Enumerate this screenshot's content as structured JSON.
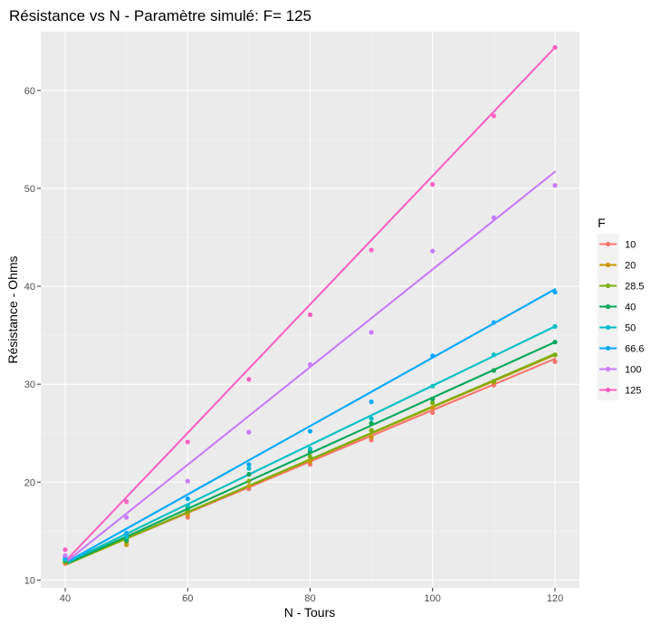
{
  "chart_data": {
    "type": "scatter",
    "title": "Résistance vs N - Paramètre simulé: F= 125",
    "xlabel": "N - Tours",
    "ylabel": "Résistance - Ohms",
    "xlim": [
      36,
      124
    ],
    "ylim": [
      9.2,
      66.0
    ],
    "x_ticks": [
      40,
      60,
      80,
      100,
      120
    ],
    "y_ticks": [
      10,
      20,
      30,
      40,
      50,
      60
    ],
    "x_tick_labels": [
      "40",
      "60",
      "80",
      "100",
      "120"
    ],
    "y_tick_labels": [
      "10",
      "20",
      "30",
      "40",
      "50",
      "60"
    ],
    "grid": true,
    "legend": {
      "title": "F",
      "position": "right"
    },
    "x": [
      40,
      50,
      60,
      70,
      80,
      90,
      100,
      110,
      120
    ],
    "series": [
      {
        "name": "10",
        "color": "#F8766D",
        "points": [
          11.7,
          13.9,
          16.4,
          19.3,
          21.8,
          24.3,
          27.1,
          29.9,
          32.3
        ],
        "fit": [
          11.6,
          32.6
        ]
      },
      {
        "name": "20",
        "color": "#CD9600",
        "points": [
          11.8,
          13.6,
          16.7,
          19.6,
          22.1,
          24.6,
          27.6,
          30.2,
          33.0
        ],
        "fit": [
          11.55,
          33.0
        ]
      },
      {
        "name": "28.5",
        "color": "#7CAE00",
        "points": [
          11.9,
          13.9,
          17.0,
          20.1,
          22.6,
          25.3,
          28.1,
          30.3,
          33.0
        ],
        "fit": [
          11.55,
          33.1
        ]
      },
      {
        "name": "40",
        "color": "#00A85A",
        "points": [
          12.0,
          14.1,
          17.3,
          20.8,
          23.1,
          26.0,
          28.5,
          31.4,
          34.3
        ],
        "fit": [
          11.6,
          34.3
        ]
      },
      {
        "name": "50",
        "color": "#00BFC4",
        "points": [
          12.1,
          14.4,
          17.6,
          21.4,
          23.4,
          26.5,
          29.8,
          33.0,
          35.9
        ],
        "fit": [
          11.7,
          35.9
        ]
      },
      {
        "name": "66.6",
        "color": "#00A9FF",
        "points": [
          12.3,
          14.8,
          18.3,
          21.8,
          25.2,
          28.2,
          32.9,
          36.3,
          39.4
        ],
        "fit": [
          11.75,
          39.7
        ]
      },
      {
        "name": "100",
        "color": "#C77CFF",
        "points": [
          12.5,
          16.4,
          20.1,
          25.1,
          32.0,
          35.3,
          43.6,
          47.0,
          50.3
        ],
        "fit": [
          11.8,
          51.7
        ]
      },
      {
        "name": "125",
        "color": "#FF61C3",
        "points": [
          13.1,
          18.0,
          24.1,
          30.5,
          37.1,
          43.7,
          50.4,
          57.4,
          64.4
        ],
        "fit": [
          11.9,
          64.4
        ]
      }
    ]
  }
}
